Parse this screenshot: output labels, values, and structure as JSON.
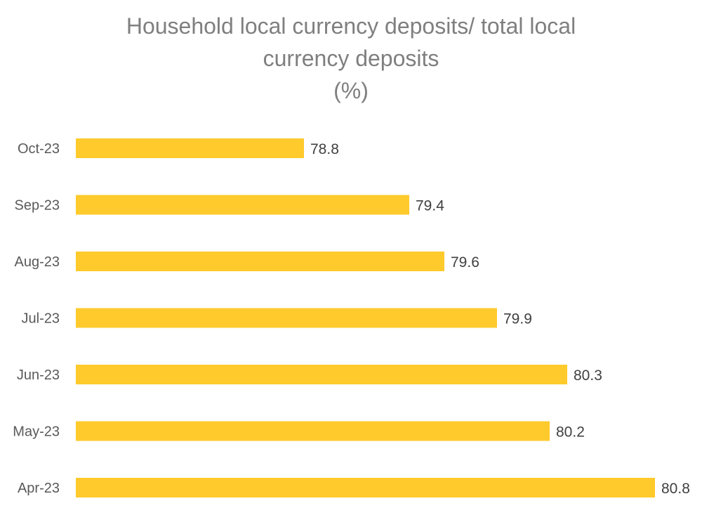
{
  "chart_data": {
    "type": "bar",
    "orientation": "horizontal",
    "title_lines": [
      "Household local currency deposits/ total local",
      "currency deposits",
      "(%)"
    ],
    "categories": [
      "Oct-23",
      "Sep-23",
      "Aug-23",
      "Jul-23",
      "Jun-23",
      "May-23",
      "Apr-23"
    ],
    "values": [
      78.8,
      79.4,
      79.6,
      79.9,
      80.3,
      80.2,
      80.8
    ],
    "value_labels": [
      "78.8",
      "79.4",
      "79.6",
      "79.9",
      "80.3",
      "80.2",
      "80.8"
    ],
    "xlabel": "",
    "ylabel": "",
    "xlim": [
      77.5,
      81.0
    ],
    "grid": false,
    "legend": "none",
    "bar_color": "#FFCA2C"
  }
}
